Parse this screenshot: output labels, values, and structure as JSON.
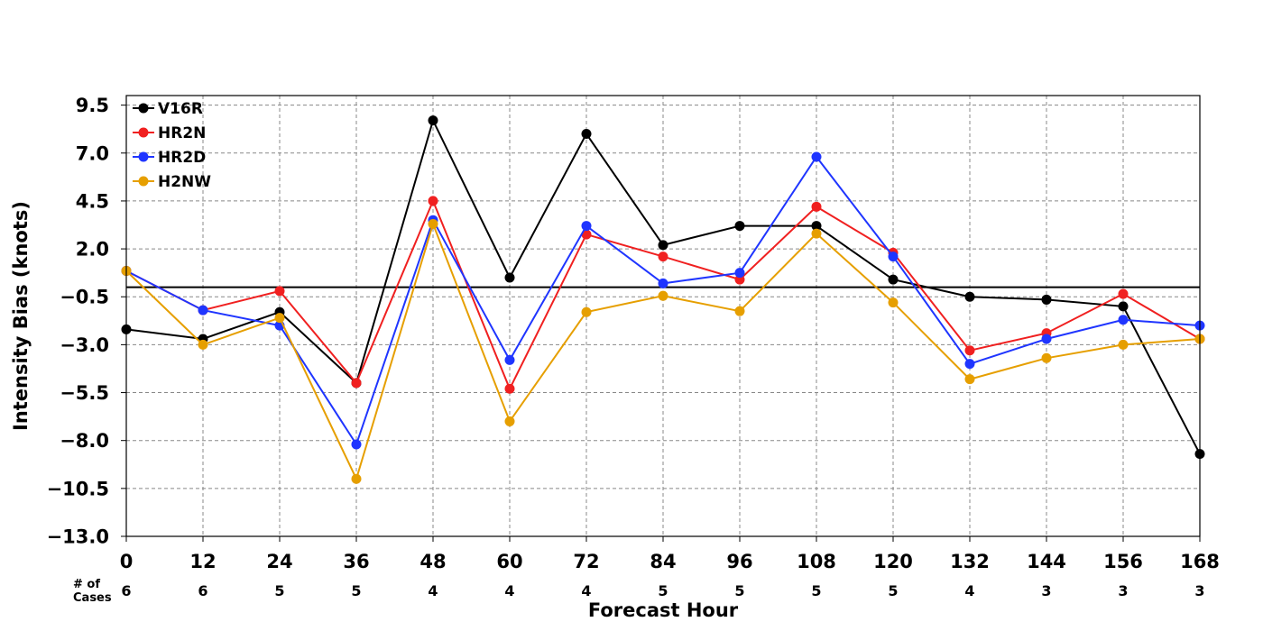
{
  "chart_data": {
    "type": "line",
    "title": "",
    "xlabel": "Forecast Hour",
    "ylabel": "Intensity Bias (knots)",
    "x": [
      0,
      12,
      24,
      36,
      48,
      60,
      72,
      84,
      96,
      108,
      120,
      132,
      144,
      156,
      168
    ],
    "x_ticks": [
      "0",
      "12",
      "24",
      "36",
      "48",
      "60",
      "72",
      "84",
      "96",
      "108",
      "120",
      "132",
      "144",
      "156",
      "168"
    ],
    "y_ticks": [
      "9.5",
      "7.0",
      "4.5",
      "2.0",
      "−0.5",
      "−3.0",
      "−5.5",
      "−8.0",
      "−10.5",
      "−13.0"
    ],
    "xlim": [
      0,
      168
    ],
    "ylim": [
      -13.0,
      10.0
    ],
    "grid": true,
    "legend_position": "top-left",
    "zero_line": 0,
    "cases_label": "# of\nCases",
    "cases": [
      "6",
      "6",
      "5",
      "5",
      "4",
      "4",
      "4",
      "5",
      "5",
      "5",
      "5",
      "4",
      "3",
      "3",
      "3"
    ],
    "series": [
      {
        "name": "V16R",
        "color": "#000000",
        "values": [
          -2.2,
          -2.7,
          -1.3,
          -5.0,
          8.7,
          0.5,
          8.0,
          2.2,
          3.2,
          3.2,
          0.4,
          -0.5,
          -0.65,
          -1.0,
          -8.7
        ]
      },
      {
        "name": "HR2N",
        "color": "#f02020",
        "values": [
          0.85,
          -1.2,
          -0.2,
          -5.0,
          4.5,
          -5.3,
          2.75,
          1.6,
          0.4,
          4.2,
          1.8,
          -3.3,
          -2.4,
          -0.35,
          -2.7
        ]
      },
      {
        "name": "HR2D",
        "color": "#1f35ff",
        "values": [
          0.85,
          -1.2,
          -2.0,
          -8.2,
          3.5,
          -3.8,
          3.2,
          0.2,
          0.75,
          6.8,
          1.6,
          -4.0,
          -2.7,
          -1.7,
          -2.0
        ]
      },
      {
        "name": "H2NW",
        "color": "#e69f00",
        "values": [
          0.85,
          -3.0,
          -1.6,
          -10.0,
          3.3,
          -7.0,
          -1.3,
          -0.45,
          -1.25,
          2.8,
          -0.8,
          -4.8,
          -3.7,
          -3.0,
          -2.7
        ]
      }
    ]
  }
}
